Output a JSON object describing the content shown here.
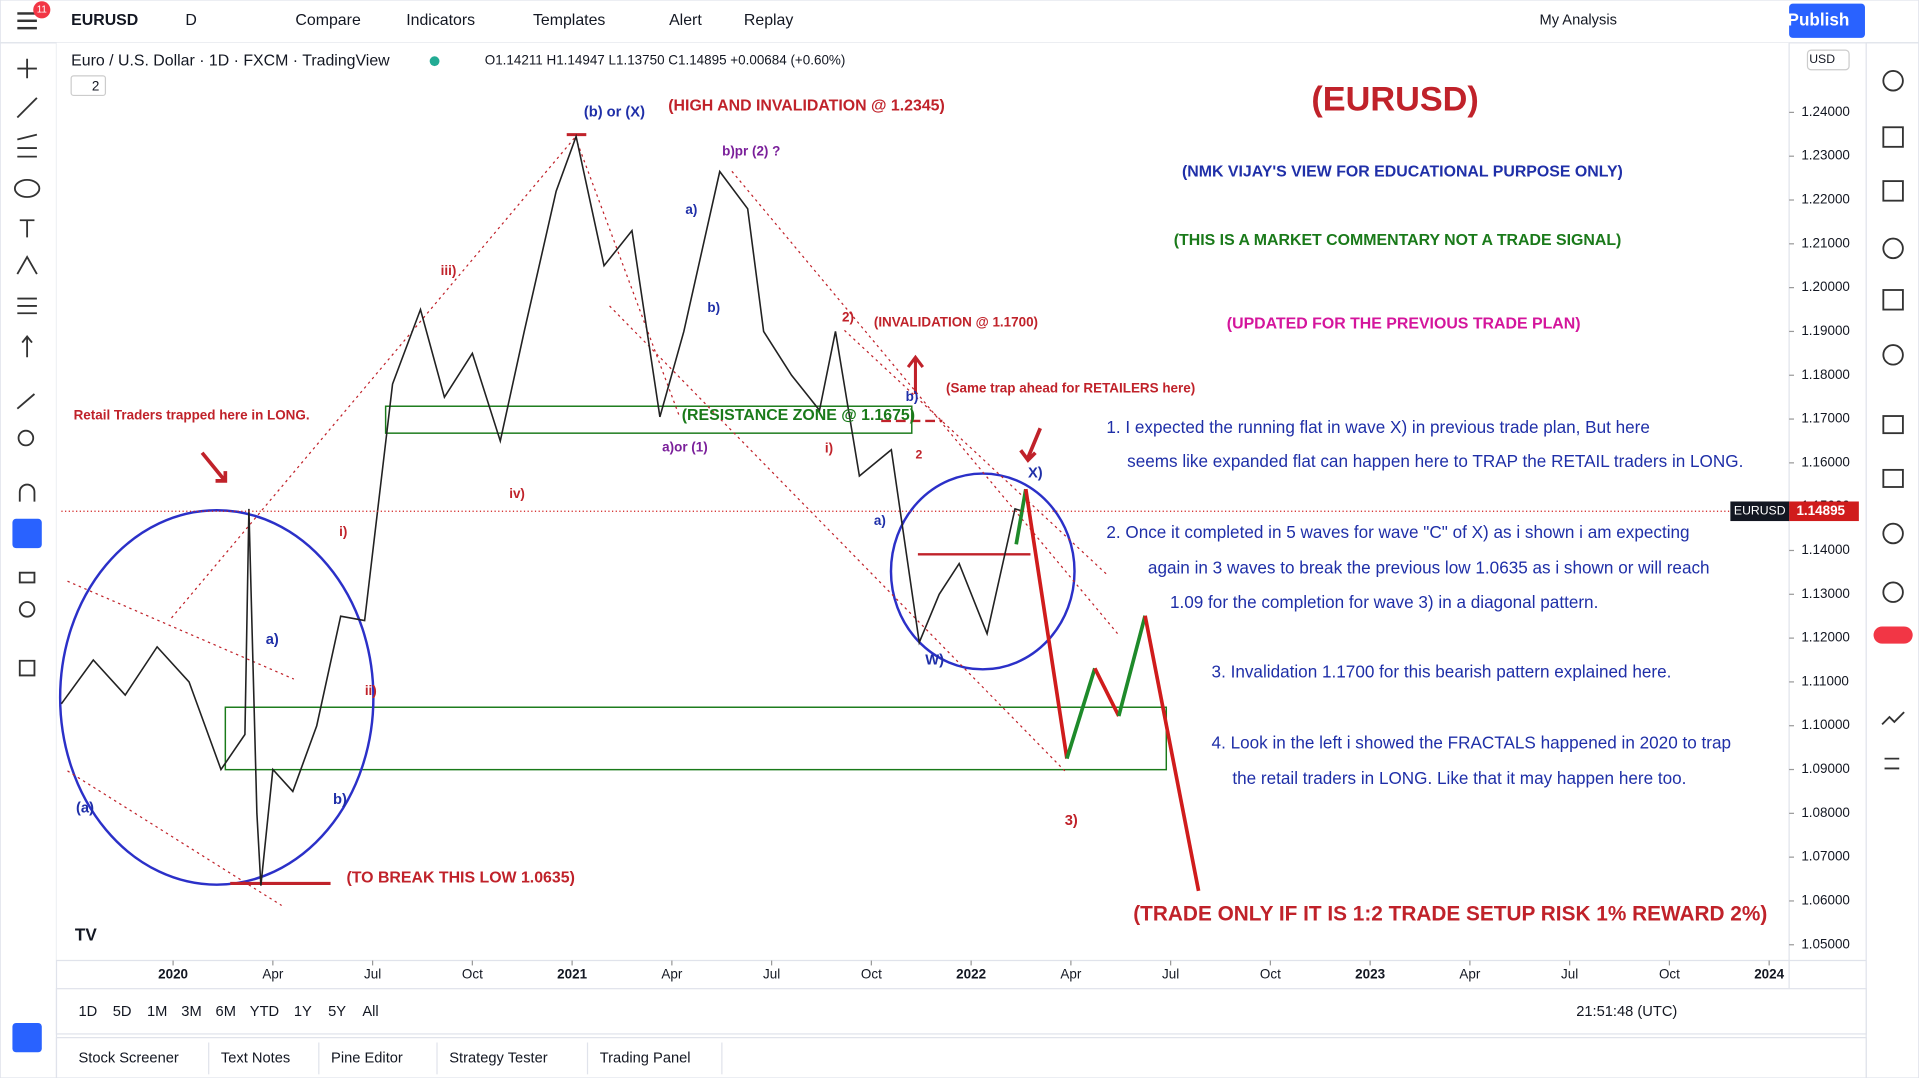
{
  "toolbar": {
    "badge": "11",
    "symbol": "EURUSD",
    "interval": "D",
    "buttons": [
      "Compare",
      "Indicators",
      "Templates",
      "Alert",
      "Replay"
    ],
    "layout": "My Analysis",
    "publish": "Publish"
  },
  "legend": {
    "title": "Euro / U.S. Dollar · 1D · FXCM · TradingView",
    "ohlc": "O1.14211 H1.14947 L1.13750 C1.14895 +0.00684 (+0.60%)",
    "collapse": "2"
  },
  "chart_data": {
    "type": "line",
    "color": "#222222",
    "x": [
      2019.72,
      2019.8,
      2019.88,
      2019.96,
      2020.04,
      2020.12,
      2020.18,
      2020.19,
      2020.21,
      2020.22,
      2020.25,
      2020.3,
      2020.36,
      2020.42,
      2020.48,
      2020.55,
      2020.62,
      2020.68,
      2020.75,
      2020.82,
      2020.88,
      2020.96,
      2021.01,
      2021.08,
      2021.15,
      2021.22,
      2021.28,
      2021.37,
      2021.44,
      2021.48,
      2021.55,
      2021.62,
      2021.66,
      2021.72,
      2021.8,
      2021.87,
      2021.92,
      2021.97,
      2022.04,
      2022.11,
      2022.13
    ],
    "values": [
      1.105,
      1.115,
      1.107,
      1.118,
      1.11,
      1.09,
      1.098,
      1.1495,
      1.08,
      1.0635,
      1.09,
      1.085,
      1.1,
      1.125,
      1.124,
      1.178,
      1.195,
      1.175,
      1.185,
      1.165,
      1.19,
      1.222,
      1.2345,
      1.205,
      1.213,
      1.1705,
      1.19,
      1.2265,
      1.218,
      1.19,
      1.18,
      1.172,
      1.19,
      1.157,
      1.163,
      1.119,
      1.13,
      1.137,
      1.121,
      1.1495,
      1.14895
    ],
    "projection": {
      "x": [
        2022.113,
        2022.137,
        2022.24,
        2022.31,
        2022.37,
        2022.436,
        2022.57
      ],
      "values": [
        1.1414,
        1.154,
        1.0925,
        1.1131,
        1.1022,
        1.1251,
        1.0623
      ],
      "colors": [
        "#1e8a2a",
        "#d01c1c",
        "#1e8a2a",
        "#d01c1c",
        "#1e8a2a",
        "#d01c1c"
      ]
    },
    "xlim": [
      2019.72,
      2024.05
    ],
    "ylim": [
      1.0464,
      1.2556
    ],
    "xticks": [
      2020,
      {
        "value": 2020.25,
        "label": "Apr"
      },
      {
        "value": 2020.5,
        "label": "Jul"
      },
      {
        "value": 2020.75,
        "label": "Oct"
      },
      2021,
      {
        "value": 2021.25,
        "label": "Apr"
      },
      {
        "value": 2021.5,
        "label": "Jul"
      },
      {
        "value": 2021.75,
        "label": "Oct"
      },
      2022,
      {
        "value": 2022.25,
        "label": "Apr"
      },
      {
        "value": 2022.5,
        "label": "Jul"
      },
      {
        "value": 2022.75,
        "label": "Oct"
      },
      2023,
      {
        "value": 2023.25,
        "label": "Apr"
      },
      {
        "value": 2023.5,
        "label": "Jul"
      },
      {
        "value": 2023.75,
        "label": "Oct"
      },
      2024
    ],
    "yticks": [
      {
        "value": 1.24,
        "label": "1.24000"
      },
      {
        "value": 1.23,
        "label": "1.23000"
      },
      {
        "value": 1.22,
        "label": "1.22000"
      },
      {
        "value": 1.21,
        "label": "1.21000"
      },
      {
        "value": 1.2,
        "label": "1.20000"
      },
      {
        "value": 1.19,
        "label": "1.19000"
      },
      {
        "value": 1.18,
        "label": "1.18000"
      },
      {
        "value": 1.17,
        "label": "1.17000"
      },
      {
        "value": 1.16,
        "label": "1.16000"
      },
      {
        "value": 1.15,
        "label": "1.15000"
      },
      {
        "value": 1.14,
        "label": "1.14000"
      },
      {
        "value": 1.13,
        "label": "1.13000"
      },
      {
        "value": 1.12,
        "label": "1.12000"
      },
      {
        "value": 1.11,
        "label": "1.11000"
      },
      {
        "value": 1.1,
        "label": "1.10000"
      },
      {
        "value": 1.09,
        "label": "1.09000"
      },
      {
        "value": 1.08,
        "label": "1.08000"
      },
      {
        "value": 1.07,
        "label": "1.07000"
      },
      {
        "value": 1.06,
        "label": "1.06000"
      },
      {
        "value": 1.05,
        "label": "1.05000"
      }
    ],
    "currency": "USD",
    "last_price": {
      "symbol": "EURUSD",
      "value": 1.14895
    }
  },
  "annotations": [
    {
      "text": "(EURUSD)",
      "color": "#c0222a"
    },
    {
      "text": "(NMK VIJAY'S VIEW FOR EDUCATIONAL PURPOSE ONLY)",
      "color": "#1f2fa8"
    },
    {
      "text": "(THIS IS A MARKET COMMENTARY NOT A TRADE SIGNAL)",
      "color": "#1a7a1a"
    },
    {
      "text": "(UPDATED FOR THE PREVIOUS TRADE PLAN)",
      "color": "#d4159c"
    },
    {
      "text": "1. I expected the running flat in wave X) in previous trade plan, But here",
      "color": "#1f2fa8"
    },
    {
      "text": "seems like expanded flat can happen here to TRAP the RETAIL traders in LONG.",
      "color": "#1f2fa8"
    },
    {
      "text": "2. Once it completed in 5 waves for wave \"C\" of X) as i shown i am expecting",
      "color": "#1f2fa8"
    },
    {
      "text": "again in 3 waves to break the previous low 1.0635 as i shown or will reach",
      "color": "#1f2fa8"
    },
    {
      "text": "1.09 for the completion for wave 3) in a diagonal pattern.",
      "color": "#1f2fa8"
    },
    {
      "text": "3. Invalidation 1.1700 for this bearish pattern  explained here.",
      "color": "#1f2fa8"
    },
    {
      "text": "4. Look in the left i showed the FRACTALS happened in 2020 to trap",
      "color": "#1f2fa8"
    },
    {
      "text": "the retail traders in LONG. Like that it may happen here too.",
      "color": "#1f2fa8"
    },
    {
      "text": "(TRADE ONLY IF IT IS 1:2 TRADE SETUP RISK 1% REWARD 2%)",
      "color": "#c0222a"
    },
    {
      "text": "(HIGH AND INVALIDATION @ 1.2345)",
      "color": "#c0222a"
    },
    {
      "text": "(INVALIDATION @ 1.1700)",
      "color": "#c0222a"
    },
    {
      "text": "(Same trap ahead for RETAILERS here)",
      "color": "#c0222a"
    },
    {
      "text": "Retail Traders trapped here in LONG.",
      "color": "#c0222a"
    },
    {
      "text": "(TO BREAK THIS LOW 1.0635)",
      "color": "#c0222a"
    },
    {
      "text": "(RESISTANCE ZONE @ 1.1675)",
      "color": "#1a7a1a"
    },
    {
      "text": "(b) or (X)",
      "color": "#1f2fa8"
    },
    {
      "text": "b)pr (2) ?",
      "color": "#7a1f9a"
    },
    {
      "text": "a)",
      "color": "#1f2fa8"
    },
    {
      "text": "b)",
      "color": "#1f2fa8"
    },
    {
      "text": "a)or (1)",
      "color": "#7a1f9a"
    },
    {
      "text": "iii)",
      "color": "#c0222a"
    },
    {
      "text": "iv)",
      "color": "#c0222a"
    },
    {
      "text": "i)",
      "color": "#c0222a"
    },
    {
      "text": "ii)",
      "color": "#c0222a"
    },
    {
      "text": "a)",
      "color": "#1f2fa8"
    },
    {
      "text": "b)",
      "color": "#1f2fa8"
    },
    {
      "text": "(a)",
      "color": "#1f2fa8"
    },
    {
      "text": "2)",
      "color": "#c0222a"
    },
    {
      "text": "i)",
      "color": "#c0222a"
    },
    {
      "text": "a)",
      "color": "#1f2fa8"
    },
    {
      "text": "b)",
      "color": "#1f2fa8"
    },
    {
      "text": "W)",
      "color": "#1f2fa8"
    },
    {
      "text": "X)",
      "color": "#1f2fa8"
    },
    {
      "text": "3)",
      "color": "#c0222a"
    },
    {
      "text": "2",
      "color": "#c0222a"
    }
  ],
  "ranges": [
    "1D",
    "5D",
    "1M",
    "3M",
    "6M",
    "YTD",
    "1Y",
    "5Y",
    "All"
  ],
  "clock": "21:51:48 (UTC)",
  "tabs": [
    "Stock Screener",
    "Text Notes",
    "Pine Editor",
    "Strategy Tester",
    "Trading Panel"
  ]
}
